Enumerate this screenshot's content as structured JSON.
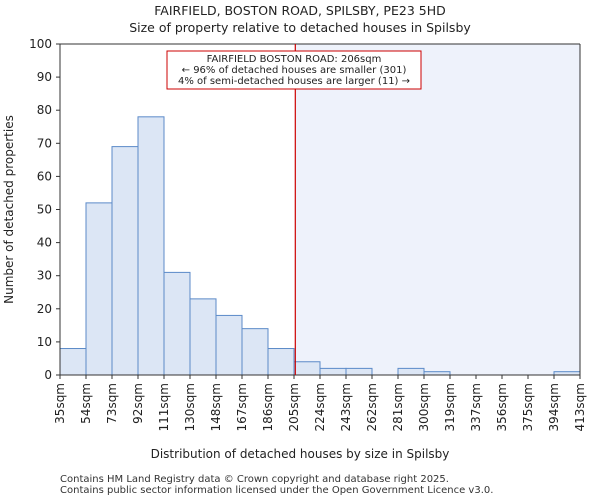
{
  "chart_data": {
    "type": "bar",
    "title": "FAIRFIELD, BOSTON ROAD, SPILSBY, PE23 5HD",
    "subtitle": "Size of property relative to detached houses in Spilsby",
    "xlabel": "Distribution of detached houses by size in Spilsby",
    "ylabel": "Number of detached properties",
    "ylim": [
      0,
      100
    ],
    "yticks": [
      0,
      10,
      20,
      30,
      40,
      50,
      60,
      70,
      80,
      90,
      100
    ],
    "bin_edges": [
      "35sqm",
      "54sqm",
      "73sqm",
      "92sqm",
      "111sqm",
      "130sqm",
      "148sqm",
      "167sqm",
      "186sqm",
      "205sqm",
      "224sqm",
      "243sqm",
      "262sqm",
      "281sqm",
      "300sqm",
      "319sqm",
      "337sqm",
      "356sqm",
      "375sqm",
      "394sqm",
      "413sqm"
    ],
    "values": [
      8,
      52,
      69,
      78,
      31,
      23,
      18,
      14,
      8,
      4,
      2,
      2,
      0,
      2,
      1,
      0,
      0,
      0,
      0,
      1
    ],
    "property_marker": {
      "value_sqm": 206,
      "bin_position": 9.05,
      "color": "#cc0000"
    },
    "annotation": {
      "line1": "FAIRFIELD BOSTON ROAD: 206sqm",
      "line2": "← 96% of detached houses are smaller (301)",
      "line3": "4% of semi-detached houses are larger (11) →"
    },
    "colors": {
      "bar_fill": "#dce6f5",
      "bar_stroke": "#5b8ac8",
      "highlight_region": "#eef2fb",
      "marker": "#cc0000"
    }
  },
  "footer": {
    "line1": "Contains HM Land Registry data © Crown copyright and database right 2025.",
    "line2": "Contains public sector information licensed under the Open Government Licence v3.0."
  }
}
